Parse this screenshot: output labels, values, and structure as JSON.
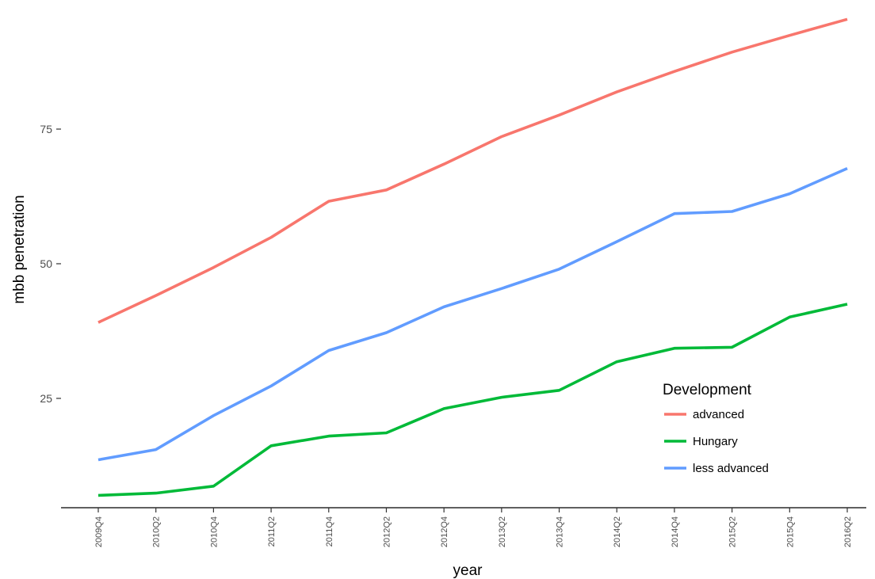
{
  "chart_data": {
    "type": "line",
    "title": "",
    "xlabel": "year",
    "ylabel": "mbb penetration",
    "categories": [
      "2009Q4",
      "2010Q2",
      "2010Q4",
      "2011Q2",
      "2011Q4",
      "2012Q2",
      "2012Q4",
      "2013Q2",
      "2013Q4",
      "2014Q2",
      "2014Q4",
      "2015Q2",
      "2015Q4",
      "2016Q2"
    ],
    "yticks": [
      25,
      50,
      75
    ],
    "ylim": [
      4.7,
      97.5
    ],
    "grid": false,
    "legend": {
      "title": "Development",
      "placement": "inside-bottom-right"
    },
    "series": [
      {
        "name": "advanced",
        "color": "#F8766D",
        "values": [
          39.1,
          44.1,
          49.3,
          54.9,
          61.6,
          63.7,
          68.5,
          73.6,
          77.6,
          81.9,
          85.7,
          89.3,
          92.4,
          95.4
        ]
      },
      {
        "name": "Hungary",
        "color": "#00BA38",
        "values": [
          7.0,
          7.4,
          8.7,
          16.2,
          18.0,
          18.6,
          23.1,
          25.2,
          26.5,
          31.8,
          34.3,
          34.5,
          40.1,
          42.5
        ]
      },
      {
        "name": "less advanced",
        "color": "#619CFF",
        "values": [
          13.6,
          15.5,
          21.8,
          27.3,
          33.9,
          37.2,
          42.0,
          45.4,
          49.0,
          54.1,
          59.3,
          59.7,
          63.0,
          67.7
        ]
      }
    ]
  }
}
